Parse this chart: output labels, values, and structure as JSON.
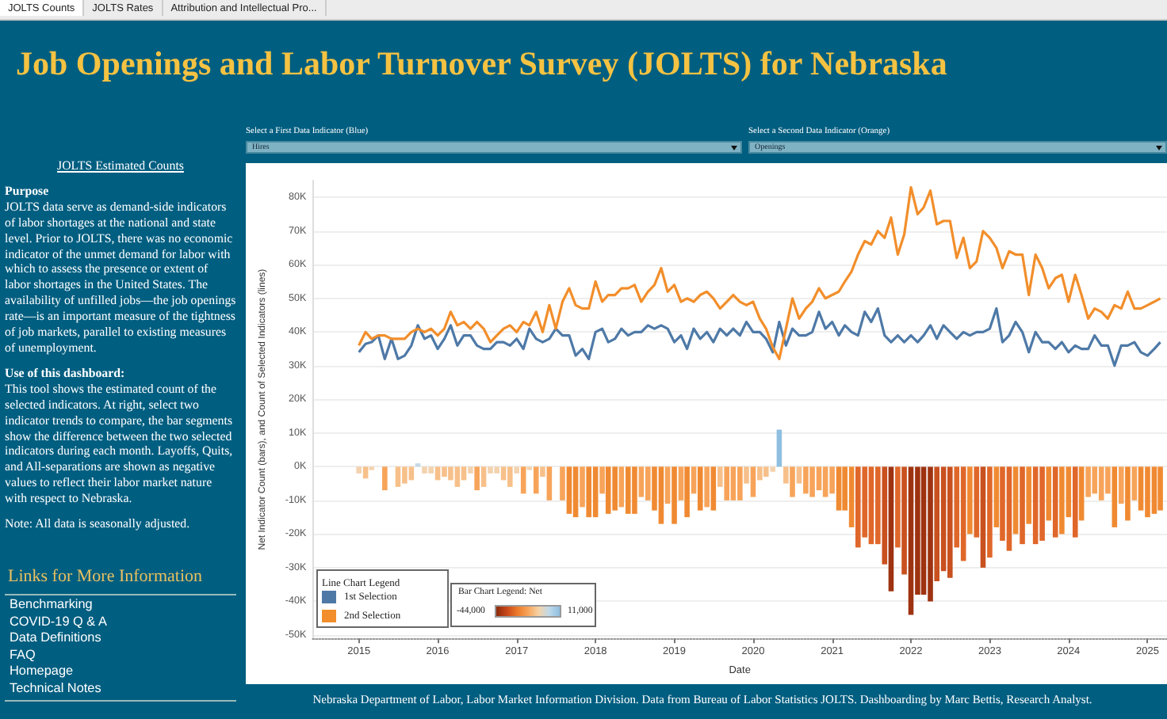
{
  "chart_data": [
    {
      "type": "line",
      "title": "Job Openings and Labor Turnover Survey (JOLTS) for Nebraska",
      "xlabel": "Date",
      "ylabel": "Net Indicator Count (bars), and Count of Selected Indicators (lines)",
      "legend_title": "Line Chart Legend",
      "clabel": "Bar Chart Legend: Net",
      "annotations": [
        "JOLTS Counts",
        "JOLTS Rates",
        "Attribution and Intellectual Pro...",
        "Select a First Data Indicator (Blue)",
        "Hires",
        "Select a Second Data Indicator (Orange)",
        "Openings",
        "Nebraska Department of Labor, Labor Market Information Division. Data from Bureau of Labor Statistics JOLTS. Dashboarding by Marc Bettis, Research Analyst.",
        "-44,000",
        "11,000"
      ],
      "x": [
        "2015-01",
        "2015-02",
        "2015-03",
        "2015-04",
        "2015-05",
        "2015-06",
        "2015-07",
        "2015-08",
        "2015-09",
        "2015-10",
        "2015-11",
        "2015-12",
        "2016-01",
        "2016-02",
        "2016-03",
        "2016-04",
        "2016-05",
        "2016-06",
        "2016-07",
        "2016-08",
        "2016-09",
        "2016-10",
        "2016-11",
        "2016-12",
        "2017-01",
        "2017-02",
        "2017-03",
        "2017-04",
        "2017-05",
        "2017-06",
        "2017-07",
        "2017-08",
        "2017-09",
        "2017-10",
        "2017-11",
        "2017-12",
        "2018-01",
        "2018-02",
        "2018-03",
        "2018-04",
        "2018-05",
        "2018-06",
        "2018-07",
        "2018-08",
        "2018-09",
        "2018-10",
        "2018-11",
        "2018-12",
        "2019-01",
        "2019-02",
        "2019-03",
        "2019-04",
        "2019-05",
        "2019-06",
        "2019-07",
        "2019-08",
        "2019-09",
        "2019-10",
        "2019-11",
        "2019-12",
        "2020-01",
        "2020-02",
        "2020-03",
        "2020-04",
        "2020-05",
        "2020-06",
        "2020-07",
        "2020-08",
        "2020-09",
        "2020-10",
        "2020-11",
        "2020-12",
        "2021-01",
        "2021-02",
        "2021-03",
        "2021-04",
        "2021-05",
        "2021-06",
        "2021-07",
        "2021-08",
        "2021-09",
        "2021-10",
        "2021-11",
        "2021-12",
        "2022-01",
        "2022-02",
        "2022-03",
        "2022-04",
        "2022-05",
        "2022-06",
        "2022-07",
        "2022-08",
        "2022-09",
        "2022-10",
        "2022-11",
        "2022-12",
        "2023-01",
        "2023-02",
        "2023-03",
        "2023-04",
        "2023-05",
        "2023-06",
        "2023-07",
        "2023-08",
        "2023-09",
        "2023-10",
        "2023-11",
        "2023-12",
        "2024-01",
        "2024-02",
        "2024-03",
        "2024-04",
        "2024-05",
        "2024-06",
        "2024-07",
        "2024-08",
        "2024-09",
        "2024-10",
        "2024-11",
        "2024-12",
        "2025-01",
        "2025-02",
        "2025-03"
      ],
      "series": [
        {
          "type": "bar",
          "colors": [
            "#f3d2ae",
            "#f7c08a",
            "#f3d2ae",
            "#f3d2ae",
            "#f7a45a",
            "#f3d2ae",
            "#f7c08a",
            "#f7c08a",
            "#f7c08a",
            "#c6d9e6",
            "#f3d2ae",
            "#f3d2ae",
            "#f7c08a",
            "#f7c08a",
            "#f7c08a",
            "#f7c08a",
            "#f7c08a",
            "#f3d2ae",
            "#f7a45a",
            "#f7c08a",
            "#f3d2ae",
            "#f3d2ae",
            "#f7c08a",
            "#f7c08a",
            "#f3d2ae",
            "#f7a45a",
            "#f3d2ae",
            "#f7a45a",
            "#f7c08a",
            "#f7a45a",
            "#f3d2ae",
            "#f7a45a",
            "#f08a32",
            "#f08a32",
            "#f7a45a",
            "#f08a32",
            "#f08a32",
            "#f7a45a",
            "#f08a32",
            "#f08a32",
            "#f7a45a",
            "#f08a32",
            "#f08a32",
            "#f7a45a",
            "#f7a45a",
            "#f08a32",
            "#f08a32",
            "#f7a45a",
            "#f08a32",
            "#f7a45a",
            "#f08a32",
            "#f7a45a",
            "#f08a32",
            "#f7a45a",
            "#f08a32",
            "#f7c08a",
            "#f7a45a",
            "#f7a45a",
            "#f7a45a",
            "#f7c08a",
            "#f7a45a",
            "#f7c08a",
            "#f7c08a",
            "#f3d2ae",
            "#8fbfe0",
            "#f7c08a",
            "#f7a45a",
            "#f7c08a",
            "#f7a45a",
            "#f7a45a",
            "#f7a45a",
            "#f7a45a",
            "#f7a45a",
            "#f08a32",
            "#f08a32",
            "#f08a32",
            "#e0672a",
            "#e0672a",
            "#e0672a",
            "#e0672a",
            "#c9501f",
            "#9e3311",
            "#e0672a",
            "#c9501f",
            "#9e3311",
            "#9e3311",
            "#9e3311",
            "#9e3311",
            "#c9501f",
            "#c9501f",
            "#c9501f",
            "#e0672a",
            "#e0672a",
            "#f08a32",
            "#e0672a",
            "#c9501f",
            "#e0672a",
            "#f08a32",
            "#e0672a",
            "#e0672a",
            "#f08a32",
            "#e0672a",
            "#f08a32",
            "#e0672a",
            "#e0672a",
            "#f08a32",
            "#e0672a",
            "#f08a32",
            "#f08a32",
            "#e0672a",
            "#f08a32",
            "#f7a45a",
            "#f7a45a",
            "#f7a45a",
            "#f7a45a",
            "#f08a32",
            "#f7a45a",
            "#f08a32",
            "#f7a45a",
            "#f08a32",
            "#f08a32",
            "#f08a32",
            "#f08a32"
          ],
          "values": [
            -2000,
            -3500,
            -1000,
            0,
            -7000,
            0,
            -6000,
            -5000,
            -4000,
            1000,
            -2000,
            -2000,
            -4000,
            -3000,
            -4000,
            -6000,
            -4000,
            -2000,
            -7000,
            -6000,
            -2000,
            -2000,
            -4000,
            -6000,
            -2000,
            -8000,
            -1000,
            -8000,
            -3000,
            -10000,
            0,
            -10000,
            -14000,
            -15000,
            -12000,
            -15000,
            -15000,
            -8000,
            -14000,
            -13000,
            -12000,
            -14000,
            -14000,
            -9000,
            -10000,
            -13000,
            -17000,
            -11000,
            -17000,
            -10000,
            -15000,
            -8000,
            -13000,
            -12000,
            -13000,
            -6000,
            -10000,
            -10000,
            -10000,
            -5000,
            -9000,
            -4000,
            -3000,
            -1500,
            11000,
            -5000,
            -9000,
            -5000,
            -8000,
            -9000,
            -7000,
            -9000,
            -8000,
            -13000,
            -13000,
            -18000,
            -24000,
            -21000,
            -23000,
            -23000,
            -29000,
            -37000,
            -24000,
            -32000,
            -44000,
            -38000,
            -38000,
            -40000,
            -34000,
            -31000,
            -33000,
            -24000,
            -28000,
            -20000,
            -21000,
            -30000,
            -27000,
            -18000,
            -22000,
            -25000,
            -20000,
            -23000,
            -17000,
            -23000,
            -22000,
            -16000,
            -21000,
            -20000,
            -15000,
            -21000,
            -16000,
            -9000,
            -8000,
            -10000,
            -8000,
            -18000,
            -11000,
            -16000,
            -10000,
            -13000,
            -15000,
            -14000,
            -13000
          ]
        },
        {
          "type": "line",
          "name": "1st Selection",
          "color": "#4e79a7",
          "values": [
            34000,
            36500,
            37000,
            39000,
            32000,
            38000,
            32000,
            33000,
            36000,
            42000,
            38000,
            39000,
            35000,
            38000,
            42000,
            36000,
            39000,
            39000,
            36000,
            35000,
            35000,
            37000,
            37000,
            36000,
            38000,
            35000,
            41000,
            38000,
            37000,
            38000,
            41000,
            39000,
            39000,
            33000,
            35000,
            32000,
            40000,
            41000,
            37000,
            38000,
            41000,
            39000,
            40000,
            40000,
            42000,
            41000,
            42000,
            41000,
            37000,
            39000,
            35000,
            41000,
            38000,
            40000,
            37000,
            41000,
            39000,
            41000,
            39000,
            43000,
            40000,
            40000,
            38000,
            34000,
            43000,
            36000,
            41000,
            39000,
            39000,
            40000,
            46000,
            41000,
            43000,
            39000,
            42000,
            40000,
            39000,
            46000,
            43000,
            47000,
            39000,
            37000,
            39000,
            37000,
            39000,
            37000,
            39000,
            42000,
            38000,
            42000,
            40000,
            38000,
            40000,
            39000,
            40000,
            40000,
            41000,
            47000,
            37000,
            39000,
            43000,
            40000,
            34000,
            40000,
            37000,
            37000,
            35000,
            37000,
            34000,
            36000,
            35000,
            35000,
            39000,
            36000,
            36000,
            30000,
            36000,
            36000,
            37000,
            34000,
            33000,
            35000,
            37000
          ]
        },
        {
          "type": "line",
          "name": "2nd Selection",
          "color": "#f28e2b",
          "values": [
            36000,
            40000,
            38000,
            39000,
            39000,
            38000,
            38000,
            38000,
            40000,
            41000,
            40000,
            41000,
            39000,
            41000,
            46000,
            42000,
            43000,
            41000,
            43000,
            41000,
            37000,
            39000,
            41000,
            42000,
            40000,
            43000,
            42000,
            46000,
            40000,
            48000,
            41000,
            49000,
            53000,
            48000,
            47000,
            47000,
            55000,
            49000,
            51000,
            51000,
            53000,
            53000,
            54000,
            49000,
            52000,
            54000,
            59000,
            52000,
            54000,
            49000,
            50000,
            49000,
            51000,
            52000,
            50000,
            47000,
            49000,
            51000,
            49000,
            48000,
            49000,
            44000,
            41000,
            35500,
            32000,
            41000,
            50000,
            44000,
            47000,
            49000,
            53000,
            50000,
            51000,
            52000,
            55000,
            58000,
            63000,
            67000,
            66000,
            70000,
            68000,
            74000,
            63000,
            69000,
            83000,
            75000,
            77000,
            82000,
            72000,
            73000,
            73000,
            62000,
            68000,
            59000,
            61000,
            70000,
            68000,
            65000,
            59000,
            64000,
            63000,
            63000,
            51000,
            63000,
            59000,
            53000,
            56000,
            57000,
            49000,
            57000,
            51000,
            44000,
            47000,
            46000,
            44000,
            48000,
            47000,
            52000,
            47000,
            47000,
            48000,
            49000,
            50000
          ]
        }
      ],
      "xlim": [
        "2014-06",
        "2025-04"
      ],
      "xticks": [
        "2015",
        "2016",
        "2017",
        "2018",
        "2019",
        "2020",
        "2021",
        "2022",
        "2023",
        "2024",
        "2025"
      ],
      "ylim": [
        -51000,
        85000
      ],
      "yticks": [
        {
          "value": -50000,
          "label": "-50K"
        },
        {
          "value": -40000,
          "label": "-40K"
        },
        {
          "value": -30000,
          "label": "-30K"
        },
        {
          "value": -20000,
          "label": "-20K"
        },
        {
          "value": -10000,
          "label": "-10K"
        },
        {
          "value": 0,
          "label": "0K"
        },
        {
          "value": 10000,
          "label": "10K"
        },
        {
          "value": 20000,
          "label": "20K"
        },
        {
          "value": 30000,
          "label": "30K"
        },
        {
          "value": 40000,
          "label": "40K"
        },
        {
          "value": 50000,
          "label": "50K"
        },
        {
          "value": 60000,
          "label": "60K"
        },
        {
          "value": 70000,
          "label": "70K"
        },
        {
          "value": 80000,
          "label": "80K"
        }
      ],
      "grid": "y",
      "legend": "bottom left",
      "marker": "none"
    },
    {
      "type": "other",
      "title": "JOLTS Estimated Counts",
      "annotations": [
        "Purpose",
        "JOLTS data serve as demand-side indicators of labor shortages at the national and state level. Prior to JOLTS, there was no economic indicator of the unmet demand for labor with which to assess the presence or extent of labor shortages in the United States. The availability of unfilled jobs—the job openings rate—is an important measure of the tightness of job markets, parallel to existing measures of unemployment.",
        "Use of this dashboard:",
        "This tool shows the estimated count of the selected indicators. At right, select two indicator trends to compare, the bar segments show the difference between the two selected indicators during each month. Layoffs, Quits, and All-separations are shown as negative values to reflect their labor market nature with respect to Nebraska.",
        "Note: All data is seasonally adjusted.",
        "Links for More Information",
        "Benchmarking",
        "COVID-19 Q & A",
        "Data Definitions",
        "FAQ",
        "Homepage",
        "Technical Notes"
      ]
    }
  ]
}
